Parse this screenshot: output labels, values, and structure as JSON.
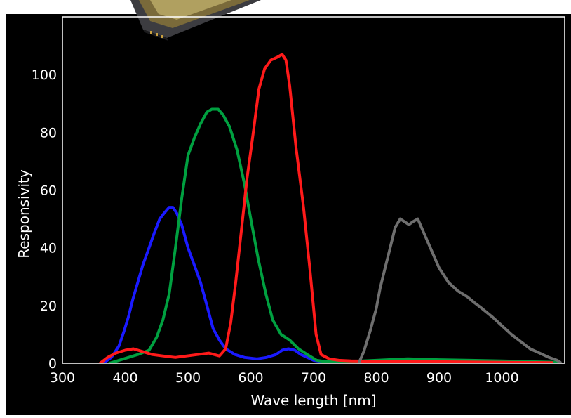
{
  "chart_data": {
    "type": "line",
    "xlabel": "Wave length [nm]",
    "ylabel": "Responsivity",
    "xlim": [
      300,
      1100
    ],
    "ylim": [
      0,
      120
    ],
    "x_ticks": [
      300,
      400,
      500,
      600,
      700,
      800,
      900,
      1000
    ],
    "y_ticks": [
      0,
      20,
      40,
      60,
      80,
      100
    ],
    "grid": false,
    "colors": {
      "background": "#000000",
      "axes_frame": "#ffffff",
      "text": "#ffffff"
    },
    "series": [
      {
        "color": "#1a1aff",
        "points": [
          [
            365,
            0
          ],
          [
            378,
            2
          ],
          [
            390,
            6
          ],
          [
            398,
            11
          ],
          [
            405,
            16
          ],
          [
            412,
            22
          ],
          [
            420,
            28
          ],
          [
            428,
            34
          ],
          [
            438,
            40
          ],
          [
            446,
            45
          ],
          [
            455,
            50
          ],
          [
            462,
            52
          ],
          [
            470,
            54
          ],
          [
            476,
            54
          ],
          [
            482,
            52
          ],
          [
            490,
            48
          ],
          [
            500,
            40
          ],
          [
            510,
            34
          ],
          [
            520,
            28
          ],
          [
            530,
            20
          ],
          [
            540,
            12
          ],
          [
            550,
            8
          ],
          [
            560,
            5
          ],
          [
            575,
            3
          ],
          [
            590,
            2
          ],
          [
            610,
            1.5
          ],
          [
            625,
            2
          ],
          [
            640,
            3
          ],
          [
            650,
            4.5
          ],
          [
            660,
            5
          ],
          [
            670,
            4.5
          ],
          [
            680,
            3
          ],
          [
            690,
            2
          ],
          [
            700,
            1
          ],
          [
            715,
            0.5
          ],
          [
            730,
            0.3
          ],
          [
            760,
            0.2
          ],
          [
            800,
            0.2
          ],
          [
            850,
            0.1
          ],
          [
            900,
            0.1
          ],
          [
            950,
            0.1
          ],
          [
            1000,
            0.1
          ]
        ]
      },
      {
        "color": "#00a040",
        "points": [
          [
            375,
            0
          ],
          [
            390,
            1
          ],
          [
            405,
            2
          ],
          [
            420,
            3
          ],
          [
            438,
            4.5
          ],
          [
            450,
            9
          ],
          [
            460,
            15
          ],
          [
            470,
            24
          ],
          [
            480,
            40
          ],
          [
            490,
            57
          ],
          [
            500,
            72
          ],
          [
            510,
            78
          ],
          [
            520,
            83
          ],
          [
            530,
            87
          ],
          [
            538,
            88
          ],
          [
            548,
            88
          ],
          [
            556,
            86
          ],
          [
            566,
            82
          ],
          [
            578,
            74
          ],
          [
            590,
            62
          ],
          [
            600,
            50
          ],
          [
            612,
            36
          ],
          [
            624,
            24
          ],
          [
            635,
            15
          ],
          [
            648,
            10
          ],
          [
            662,
            8
          ],
          [
            676,
            5
          ],
          [
            690,
            3
          ],
          [
            705,
            1
          ],
          [
            720,
            0.5
          ],
          [
            750,
            0.5
          ],
          [
            800,
            1
          ],
          [
            850,
            1.5
          ],
          [
            900,
            1.2
          ],
          [
            950,
            1
          ],
          [
            1000,
            0.8
          ],
          [
            1050,
            0.5
          ],
          [
            1090,
            0.3
          ]
        ]
      },
      {
        "color": "#ff1a1a",
        "points": [
          [
            360,
            0
          ],
          [
            372,
            2
          ],
          [
            385,
            3.5
          ],
          [
            400,
            4.5
          ],
          [
            413,
            5
          ],
          [
            428,
            4
          ],
          [
            443,
            3
          ],
          [
            460,
            2.5
          ],
          [
            480,
            2
          ],
          [
            498,
            2.5
          ],
          [
            515,
            3
          ],
          [
            533,
            3.5
          ],
          [
            550,
            2.5
          ],
          [
            560,
            5
          ],
          [
            568,
            14
          ],
          [
            576,
            28
          ],
          [
            585,
            46
          ],
          [
            594,
            64
          ],
          [
            604,
            80
          ],
          [
            613,
            95
          ],
          [
            622,
            102
          ],
          [
            632,
            105
          ],
          [
            642,
            106
          ],
          [
            650,
            107
          ],
          [
            656,
            105
          ],
          [
            662,
            96
          ],
          [
            672,
            75
          ],
          [
            684,
            54
          ],
          [
            694,
            33
          ],
          [
            704,
            10
          ],
          [
            712,
            3
          ],
          [
            725,
            1.5
          ],
          [
            740,
            1
          ],
          [
            760,
            0.8
          ],
          [
            800,
            0.6
          ],
          [
            900,
            0.5
          ],
          [
            1000,
            0.3
          ],
          [
            1080,
            0.2
          ]
        ]
      },
      {
        "color": "#6e6e6e",
        "points": [
          [
            772,
            0
          ],
          [
            780,
            4
          ],
          [
            790,
            11
          ],
          [
            800,
            19
          ],
          [
            806,
            26
          ],
          [
            814,
            33
          ],
          [
            822,
            40
          ],
          [
            830,
            47
          ],
          [
            838,
            50
          ],
          [
            845,
            49
          ],
          [
            852,
            48
          ],
          [
            858,
            49
          ],
          [
            866,
            50
          ],
          [
            874,
            46
          ],
          [
            882,
            42
          ],
          [
            890,
            38
          ],
          [
            900,
            33
          ],
          [
            915,
            28
          ],
          [
            930,
            25
          ],
          [
            945,
            23
          ],
          [
            956,
            21
          ],
          [
            968,
            19
          ],
          [
            985,
            16
          ],
          [
            1000,
            13
          ],
          [
            1015,
            10
          ],
          [
            1030,
            7.5
          ],
          [
            1045,
            5
          ],
          [
            1060,
            3.5
          ],
          [
            1075,
            2
          ],
          [
            1088,
            1
          ],
          [
            1093,
            0.3
          ]
        ]
      }
    ]
  }
}
